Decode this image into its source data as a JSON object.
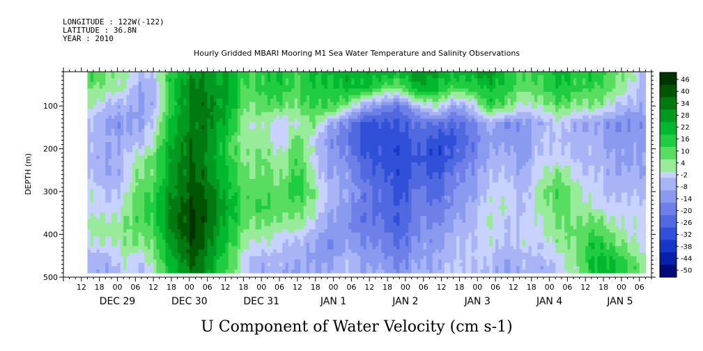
{
  "header": {
    "longitude": "LONGITUDE : 122W(-122)",
    "latitude": "LATITUDE : 36.8N",
    "year": "YEAR : 2010",
    "title": "Hourly Gridded MBARI Mooring M1 Sea Water Temperature and Salinity Observations"
  },
  "xlabel": "U Component of Water Velocity (cm s-1)",
  "ylabel": "DEPTH (m)",
  "chart_data": {
    "type": "heatmap",
    "title": "Hourly Gridded MBARI Mooring M1 Sea Water Temperature and Salinity Observations",
    "xlabel": "U Component of Water Velocity (cm s-1)",
    "ylabel": "DEPTH (m)",
    "x_start": "2010-12-28 06:00",
    "x_end": "2011-01-05 10:00",
    "x_hour_ticks": [
      "12",
      "18",
      "00",
      "06",
      "12",
      "18",
      "00",
      "06",
      "12",
      "18",
      "00",
      "06",
      "12",
      "18",
      "00",
      "06",
      "12",
      "18",
      "00",
      "06",
      "12",
      "18",
      "00",
      "06",
      "12",
      "18",
      "00",
      "06",
      "12",
      "18",
      "00",
      "06"
    ],
    "x_day_labels": [
      "DEC 29",
      "DEC 30",
      "DEC 31",
      "JAN  1",
      "JAN  2",
      "JAN  3",
      "JAN  4",
      "JAN  5"
    ],
    "y_ticks": [
      100,
      200,
      300,
      400,
      500
    ],
    "ylim": [
      500,
      20
    ],
    "colorbar_labels": [
      46,
      40,
      34,
      28,
      22,
      16,
      10,
      4,
      -2,
      -8,
      -14,
      -20,
      -26,
      -32,
      -38,
      -44,
      -50
    ],
    "colorbar_range": [
      -50,
      49
    ],
    "colorbar_colors": [
      "#003300",
      "#005500",
      "#007a10",
      "#009a20",
      "#00b82e",
      "#20cc40",
      "#58dd60",
      "#98eb98",
      "#c8d2ff",
      "#a8b4f5",
      "#8a9aee",
      "#6e80e8",
      "#5068e0",
      "#3050d8",
      "#1638c8",
      "#0820a8",
      "#000a78"
    ],
    "data_grid_hours": [
      0,
      6,
      12,
      18,
      24,
      30,
      36,
      42,
      48,
      54,
      60,
      66,
      72,
      78,
      84,
      90,
      96,
      102,
      108,
      114,
      120,
      126,
      132,
      138,
      144,
      150,
      156,
      162,
      168,
      174,
      180,
      186,
      192
    ],
    "data_grid_depths": [
      20,
      60,
      100,
      140,
      180,
      220,
      260,
      300,
      340,
      380,
      420,
      460,
      490
    ],
    "values": [
      [
        14,
        10,
        8,
        -6,
        2,
        20,
        30,
        28,
        26,
        14,
        18,
        20,
        16,
        20,
        24,
        22,
        26,
        22,
        24,
        30,
        28,
        20,
        26,
        28,
        22,
        12,
        18,
        22,
        20,
        18,
        14,
        6,
        -10
      ],
      [
        8,
        6,
        4,
        -10,
        -2,
        22,
        34,
        30,
        28,
        12,
        16,
        16,
        14,
        18,
        20,
        20,
        22,
        8,
        10,
        24,
        22,
        12,
        16,
        20,
        18,
        8,
        14,
        18,
        16,
        14,
        10,
        2,
        -8
      ],
      [
        4,
        -4,
        -6,
        -12,
        -2,
        20,
        36,
        32,
        26,
        8,
        12,
        10,
        10,
        14,
        16,
        4,
        -8,
        -16,
        -18,
        -6,
        6,
        -12,
        -2,
        14,
        12,
        -2,
        6,
        10,
        8,
        6,
        2,
        -8,
        -6
      ],
      [
        -6,
        -10,
        -12,
        -10,
        4,
        24,
        34,
        32,
        24,
        4,
        6,
        -4,
        4,
        6,
        -6,
        -20,
        -28,
        -30,
        -26,
        -22,
        -20,
        -24,
        -16,
        -8,
        -12,
        -14,
        -6,
        -2,
        -8,
        -10,
        -14,
        -16,
        -12
      ],
      [
        -4,
        -8,
        -8,
        -8,
        8,
        26,
        38,
        30,
        18,
        2,
        8,
        -4,
        12,
        -2,
        -14,
        -22,
        -30,
        -32,
        -28,
        -26,
        -28,
        -30,
        -20,
        -12,
        -10,
        -16,
        -2,
        -4,
        -6,
        -8,
        -10,
        -14,
        -10
      ],
      [
        -8,
        -10,
        -6,
        4,
        14,
        28,
        38,
        28,
        18,
        6,
        10,
        2,
        16,
        -2,
        -10,
        -18,
        -26,
        -30,
        -30,
        -28,
        -32,
        -26,
        -16,
        -10,
        -4,
        -14,
        0,
        -2,
        -4,
        -6,
        -8,
        -12,
        -8
      ],
      [
        -6,
        -8,
        -4,
        8,
        14,
        30,
        40,
        30,
        22,
        8,
        12,
        4,
        18,
        0,
        -8,
        -14,
        -22,
        -28,
        -30,
        -24,
        -26,
        -20,
        -12,
        -6,
        -2,
        -10,
        4,
        8,
        2,
        -4,
        -6,
        -8,
        -10
      ],
      [
        2,
        -4,
        -2,
        10,
        18,
        32,
        42,
        34,
        24,
        10,
        14,
        8,
        20,
        6,
        -4,
        -12,
        -18,
        -24,
        -28,
        -20,
        -22,
        -16,
        -10,
        -4,
        2,
        -8,
        8,
        12,
        6,
        -2,
        -4,
        -6,
        -4
      ],
      [
        0,
        -2,
        4,
        12,
        20,
        34,
        44,
        36,
        26,
        12,
        16,
        10,
        12,
        2,
        -8,
        -14,
        -20,
        -24,
        -26,
        -18,
        -20,
        -14,
        -6,
        0,
        4,
        -6,
        6,
        10,
        8,
        2,
        0,
        -2,
        -2
      ],
      [
        4,
        6,
        8,
        10,
        18,
        36,
        46,
        34,
        24,
        8,
        10,
        4,
        6,
        -4,
        -10,
        -16,
        -18,
        -22,
        -24,
        -16,
        -14,
        -10,
        -4,
        2,
        -2,
        -4,
        4,
        8,
        10,
        12,
        6,
        0,
        2
      ],
      [
        -2,
        2,
        6,
        6,
        14,
        30,
        44,
        32,
        20,
        4,
        2,
        -2,
        -4,
        -10,
        -14,
        -12,
        -14,
        -18,
        -20,
        -14,
        -10,
        -6,
        -2,
        0,
        -4,
        -2,
        0,
        4,
        10,
        18,
        14,
        4,
        0
      ],
      [
        -6,
        -8,
        2,
        -2,
        10,
        26,
        40,
        28,
        16,
        -2,
        -6,
        -6,
        -8,
        -12,
        -10,
        -6,
        -10,
        -14,
        -16,
        -10,
        -8,
        -4,
        -2,
        -4,
        -8,
        -6,
        -4,
        -2,
        8,
        20,
        22,
        12,
        4
      ],
      [
        -8,
        -10,
        0,
        -6,
        6,
        22,
        36,
        26,
        14,
        -4,
        -8,
        -8,
        -10,
        -10,
        -6,
        -4,
        -8,
        -10,
        -12,
        -8,
        -6,
        -2,
        -4,
        -6,
        -10,
        -8,
        -6,
        -4,
        6,
        18,
        24,
        14,
        6
      ]
    ]
  }
}
